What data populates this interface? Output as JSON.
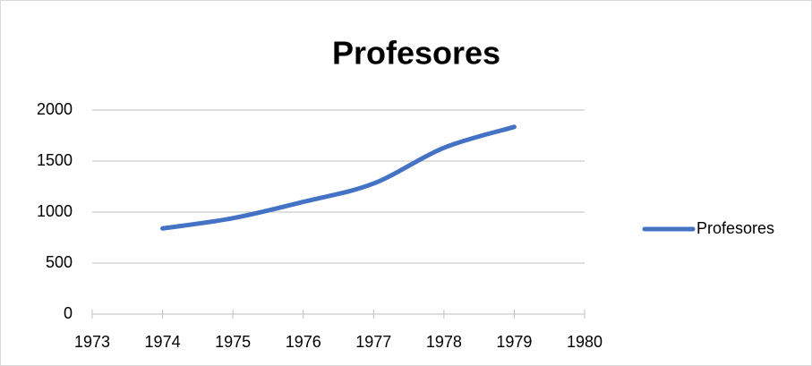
{
  "chart_data": {
    "type": "line",
    "title": "Profesores",
    "smooth": true,
    "x": [
      1974,
      1975,
      1976,
      1977,
      1978,
      1979
    ],
    "series": [
      {
        "name": "Profesores",
        "color": "#4472c4",
        "values": [
          840,
          940,
          1100,
          1280,
          1630,
          1835
        ]
      }
    ],
    "xlim": [
      1973,
      1980
    ],
    "xticks": [
      1973,
      1974,
      1975,
      1976,
      1977,
      1978,
      1979,
      1980
    ],
    "ylim": [
      0,
      2000
    ],
    "yticks": [
      0,
      500,
      1000,
      1500,
      2000
    ],
    "grid": true,
    "legend": "right"
  }
}
